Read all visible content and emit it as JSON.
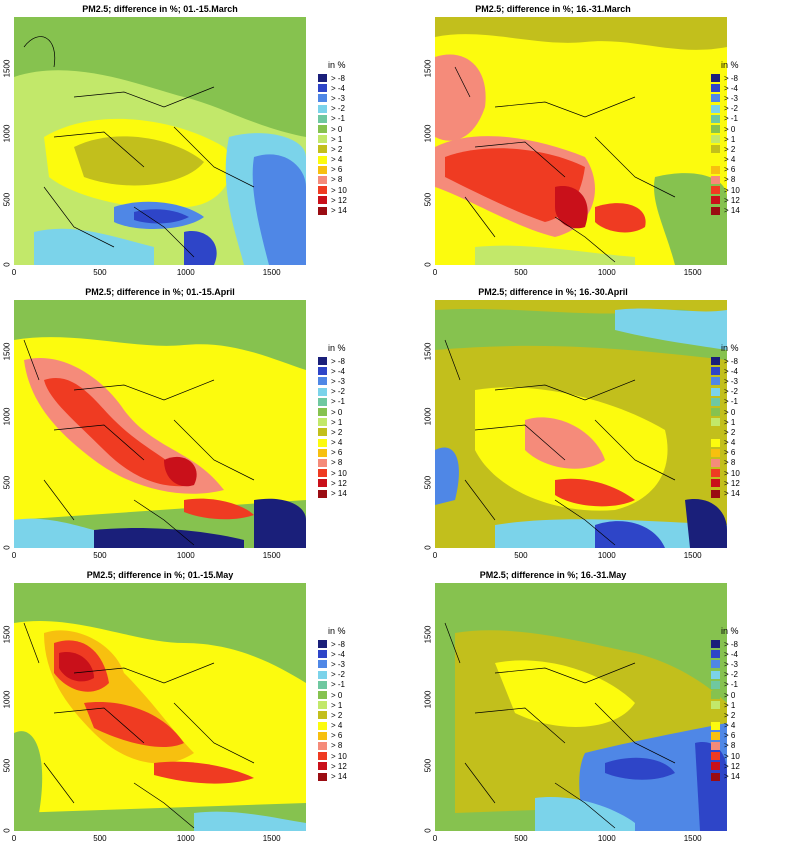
{
  "legend": {
    "title": "in %",
    "entries": [
      {
        "label": "> -8",
        "color": "#1a1f7a"
      },
      {
        "label": "> -4",
        "color": "#2e45c8"
      },
      {
        "label": "> -3",
        "color": "#4f87e6"
      },
      {
        "label": "> -2",
        "color": "#7bd3ea"
      },
      {
        "label": "> -1",
        "color": "#6fc8a0"
      },
      {
        "label": "> 0",
        "color": "#86c24f"
      },
      {
        "label": "> 1",
        "color": "#c2e86a"
      },
      {
        "label": "> 2",
        "color": "#c2bf1c"
      },
      {
        "label": "> 4",
        "color": "#fcfb0e"
      },
      {
        "label": "> 6",
        "color": "#f7c00f"
      },
      {
        "label": "> 8",
        "color": "#f58b7a"
      },
      {
        "label": "> 10",
        "color": "#ef3b22"
      },
      {
        "label": "> 12",
        "color": "#c9101a"
      },
      {
        "label": "> 14",
        "color": "#9a0c12"
      }
    ]
  },
  "axes": {
    "x_ticks": [
      "0",
      "500",
      "1000",
      "1500"
    ],
    "y_ticks": [
      "0",
      "500",
      "1000",
      "1500"
    ]
  },
  "panels": [
    {
      "title": "PM2.5; difference in %; 01.-15.March",
      "base": "#c2e86a"
    },
    {
      "title": "PM2.5; difference in %; 16.-31.March",
      "base": "#fcfb0e"
    },
    {
      "title": "PM2.5; difference in %; 01.-15.April",
      "base": "#fcfb0e"
    },
    {
      "title": "PM2.5; difference in %; 16.-30.April",
      "base": "#c2bf1c"
    },
    {
      "title": "PM2.5; difference in %; 01.-15.May",
      "base": "#fcfb0e"
    },
    {
      "title": "PM2.5; difference in %; 16.-31.May",
      "base": "#c2bf1c"
    }
  ]
}
